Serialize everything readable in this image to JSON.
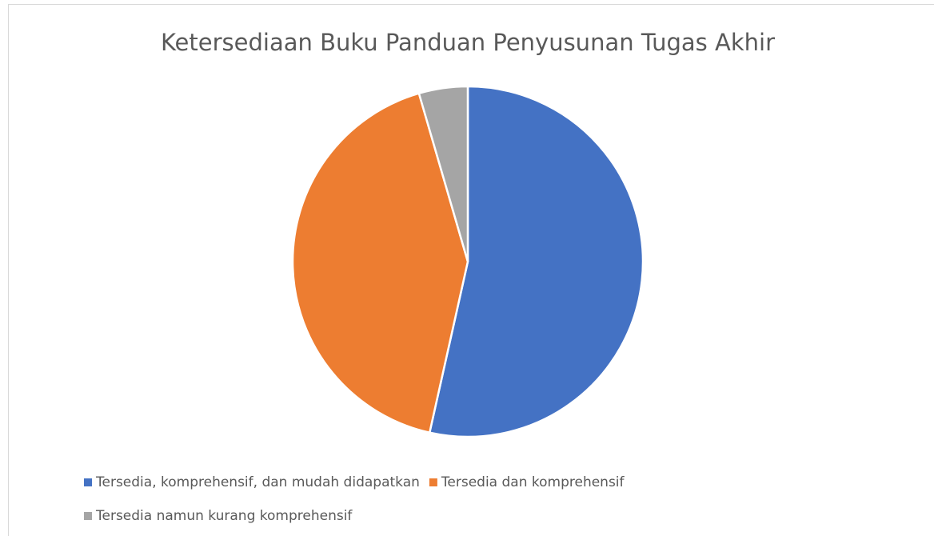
{
  "chart_data": {
    "type": "pie",
    "title": "Ketersediaan Buku Panduan Penyusunan Tugas Akhir",
    "categories": [
      "Tersedia, komprehensif, dan mudah didapatkan",
      "Tersedia dan komprehensif",
      "Tersedia namun kurang komprehensif"
    ],
    "values": [
      53.5,
      42,
      4.5
    ],
    "colors": [
      "#4472c4",
      "#ed7d31",
      "#a5a5a5"
    ],
    "legend": "bottom"
  }
}
